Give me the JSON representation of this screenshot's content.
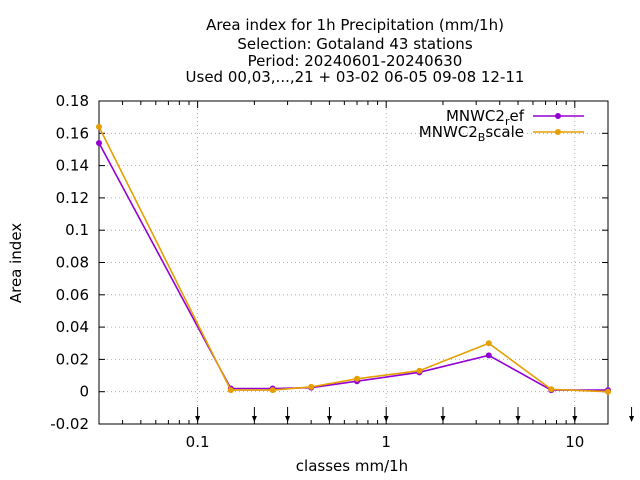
{
  "chart_data": {
    "type": "line",
    "title_lines": [
      "Area index  for 1h Precipitation (mm/1h)",
      "Selection: Gotaland     43 stations",
      "Period: 20240601-20240630",
      "Used 00,03,...,21 + 03-02 06-05 09-08 12-11"
    ],
    "xlabel": "classes mm/1h",
    "ylabel": "Area index",
    "x_scale": "log",
    "xlim": [
      0.03,
      15
    ],
    "ylim": [
      -0.02,
      0.18
    ],
    "x_ticks": [
      {
        "value": 0.1,
        "label": "0.1"
      },
      {
        "value": 1,
        "label": "1"
      },
      {
        "value": 10,
        "label": "10"
      }
    ],
    "y_ticks": [
      {
        "value": -0.02,
        "label": "-0.02"
      },
      {
        "value": 0,
        "label": "0"
      },
      {
        "value": 0.02,
        "label": "0.02"
      },
      {
        "value": 0.04,
        "label": "0.04"
      },
      {
        "value": 0.06,
        "label": "0.06"
      },
      {
        "value": 0.08,
        "label": "0.08"
      },
      {
        "value": 0.1,
        "label": "0.1"
      },
      {
        "value": 0.12,
        "label": "0.12"
      },
      {
        "value": 0.14,
        "label": "0.14"
      },
      {
        "value": 0.16,
        "label": "0.16"
      },
      {
        "value": 0.18,
        "label": "0.18"
      }
    ],
    "grid": true,
    "legend_position": "top-right",
    "class_marker_arrows_x": [
      0.1,
      0.2,
      0.3,
      0.5,
      1,
      2,
      5,
      10,
      20
    ],
    "series": [
      {
        "name": "MNWC2_ref",
        "legend_main": "MNWC2",
        "legend_sub": "r",
        "legend_tail": "ef",
        "color": "#9400d3",
        "points": [
          [
            0.03,
            0.154
          ],
          [
            0.15,
            0.002
          ],
          [
            0.25,
            0.002
          ],
          [
            0.4,
            0.0025
          ],
          [
            0.7,
            0.0065
          ],
          [
            1.5,
            0.012
          ],
          [
            3.5,
            0.0225
          ],
          [
            7.5,
            0.001
          ],
          [
            15,
            0.001
          ]
        ]
      },
      {
        "name": "MNWC2_Bscale",
        "legend_main": "MNWC2",
        "legend_sub": "B",
        "legend_tail": "scale",
        "color": "#e69f00",
        "points": [
          [
            0.03,
            0.164
          ],
          [
            0.15,
            0.001
          ],
          [
            0.25,
            0.001
          ],
          [
            0.4,
            0.003
          ],
          [
            0.7,
            0.008
          ],
          [
            1.5,
            0.013
          ],
          [
            3.5,
            0.03
          ],
          [
            7.5,
            0.0015
          ],
          [
            15,
            0.0
          ]
        ]
      }
    ]
  }
}
